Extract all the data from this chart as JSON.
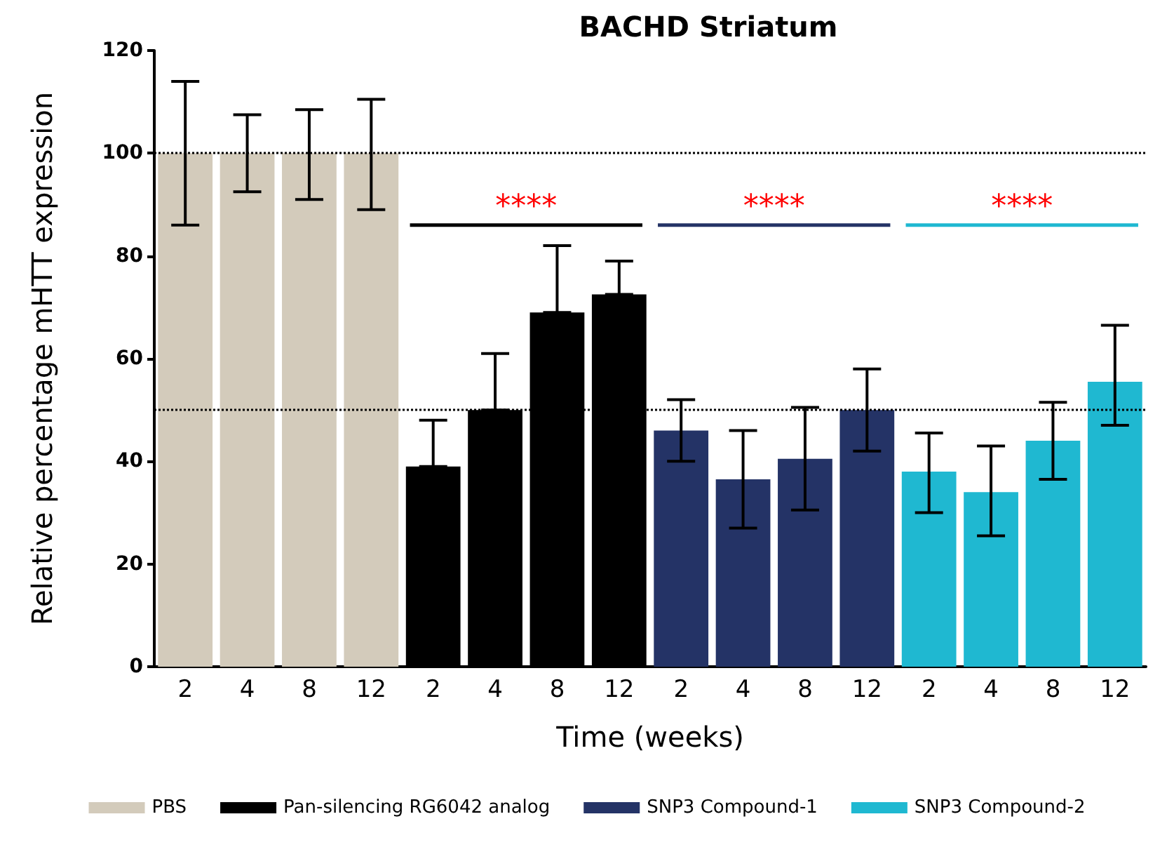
{
  "chart_data": {
    "type": "bar",
    "title": "BACHD Striatum",
    "xlabel": "Time (weeks)",
    "ylabel": "Relative percentage mHTT expression",
    "categories": [
      "2",
      "4",
      "8",
      "12",
      "2",
      "4",
      "8",
      "12",
      "2",
      "4",
      "8",
      "12",
      "2",
      "4",
      "8",
      "12"
    ],
    "series": [
      {
        "name": "PBS",
        "color": "#d3cbbb",
        "values": [
          100,
          100,
          100,
          100,
          null,
          null,
          null,
          null,
          null,
          null,
          null,
          null,
          null,
          null,
          null,
          null
        ],
        "errors": [
          [
            86,
            114
          ],
          [
            92.5,
            107.5
          ],
          [
            91,
            108.5
          ],
          [
            89,
            110.5
          ],
          null,
          null,
          null,
          null,
          null,
          null,
          null,
          null,
          null,
          null,
          null,
          null
        ]
      },
      {
        "name": "Pan-silencing RG6042 analog",
        "color": "#000000",
        "values": [
          null,
          null,
          null,
          null,
          39,
          50,
          69,
          72.5,
          null,
          null,
          null,
          null,
          null,
          null,
          null,
          null
        ],
        "errors": [
          null,
          null,
          null,
          null,
          [
            39,
            48
          ],
          [
            50,
            61
          ],
          [
            69,
            82
          ],
          [
            72.5,
            79
          ],
          null,
          null,
          null,
          null,
          null,
          null,
          null,
          null
        ]
      },
      {
        "name": "SNP3 Compound-1",
        "color": "#243366",
        "values": [
          null,
          null,
          null,
          null,
          null,
          null,
          null,
          null,
          46,
          36.5,
          40.5,
          50,
          null,
          null,
          null,
          null
        ],
        "errors": [
          null,
          null,
          null,
          null,
          null,
          null,
          null,
          null,
          [
            40,
            52
          ],
          [
            27,
            46
          ],
          [
            30.5,
            50.5
          ],
          [
            42,
            58
          ],
          null,
          null,
          null,
          null
        ]
      },
      {
        "name": "SNP3 Compound-2",
        "color": "#1fb8d1",
        "values": [
          null,
          null,
          null,
          null,
          null,
          null,
          null,
          null,
          null,
          null,
          null,
          null,
          38,
          34,
          44,
          55.5
        ],
        "errors": [
          null,
          null,
          null,
          null,
          null,
          null,
          null,
          null,
          null,
          null,
          null,
          null,
          [
            30,
            45.5
          ],
          [
            25.5,
            43
          ],
          [
            36.5,
            51.5
          ],
          [
            47,
            66.5
          ]
        ]
      }
    ],
    "annotations": [
      "****",
      "****",
      "****"
    ],
    "ylim": [
      0,
      120
    ],
    "yticks": [
      0,
      20,
      40,
      60,
      80,
      100,
      120
    ],
    "ref_lines": [
      {
        "axis": "y",
        "value": 100,
        "line_style": "dotted"
      },
      {
        "axis": "y",
        "value": 50,
        "line_style": "dotted"
      }
    ],
    "grid": false,
    "legend": "bottom"
  }
}
